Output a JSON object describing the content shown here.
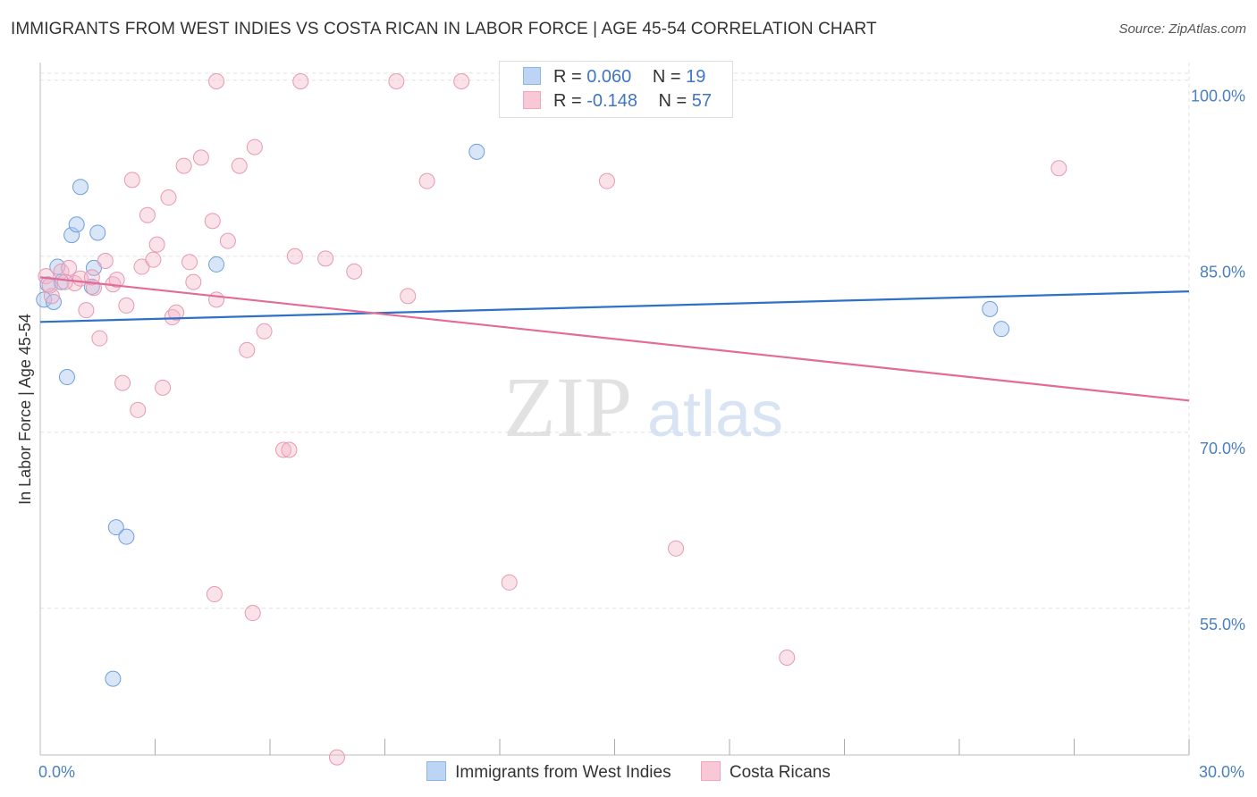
{
  "title": "IMMIGRANTS FROM WEST INDIES VS COSTA RICAN IN LABOR FORCE | AGE 45-54 CORRELATION CHART",
  "source": "Source: ZipAtlas.com",
  "watermark": {
    "zip": "ZIP",
    "atlas": "atlas"
  },
  "colors": {
    "blue": "#a9c8ef",
    "blue_line": "#2f72c5",
    "pink": "#f2b6c8",
    "pink_line": "#e26b98",
    "tick_text": "#4a7fc1",
    "grid": "#e2e2e2"
  },
  "legend": {
    "rows": [
      {
        "r_label": "R =",
        "r_value": "0.060",
        "n_label": "N =",
        "n_value": "19"
      },
      {
        "r_label": "R =",
        "r_value": "-0.148",
        "n_label": "N =",
        "n_value": "57"
      }
    ]
  },
  "chart_data": {
    "type": "scatter",
    "title": "IMMIGRANTS FROM WEST INDIES VS COSTA RICAN IN LABOR FORCE | AGE 45-54 CORRELATION CHART",
    "xlabel": "",
    "ylabel": "In Labor Force | Age 45-54",
    "xlim": [
      0,
      30
    ],
    "ylim": [
      42.5,
      101.5
    ],
    "x_tick_labels": [
      {
        "value": 0,
        "label": "0.0%"
      },
      {
        "value": 30,
        "label": "30.0%"
      }
    ],
    "y_ticks": [
      {
        "value": 100,
        "label": "100.0%"
      },
      {
        "value": 85,
        "label": "85.0%"
      },
      {
        "value": 70,
        "label": "70.0%"
      },
      {
        "value": 55,
        "label": "55.0%"
      }
    ],
    "x_minor_ticks": [
      3,
      6,
      9,
      12,
      15,
      18,
      21,
      24,
      27,
      30
    ],
    "grid": true,
    "legend_position": "top-center",
    "series": [
      {
        "name": "Immigrants from West Indies",
        "color": "#a9c8ef",
        "line_color": "#2f72c5",
        "trend": {
          "x": [
            0,
            30
          ],
          "y": [
            79.4,
            82.0
          ]
        },
        "points": [
          [
            0.1,
            81.3
          ],
          [
            0.35,
            81.1
          ],
          [
            0.45,
            84.1
          ],
          [
            0.55,
            82.8
          ],
          [
            0.7,
            74.7
          ],
          [
            0.82,
            86.8
          ],
          [
            0.95,
            87.7
          ],
          [
            1.05,
            90.9
          ],
          [
            1.35,
            82.4
          ],
          [
            1.4,
            84.0
          ],
          [
            1.5,
            87.0
          ],
          [
            1.98,
            61.9
          ],
          [
            2.25,
            61.1
          ],
          [
            1.9,
            49.0
          ],
          [
            4.6,
            84.3
          ],
          [
            11.4,
            93.9
          ],
          [
            24.8,
            80.5
          ],
          [
            25.1,
            78.8
          ],
          [
            0.2,
            82.6
          ]
        ]
      },
      {
        "name": "Costa Ricans",
        "color": "#f2b6c8",
        "line_color": "#e26b98",
        "trend": {
          "x": [
            0,
            30
          ],
          "y": [
            83.2,
            72.7
          ]
        },
        "points": [
          [
            0.15,
            83.3
          ],
          [
            0.3,
            81.6
          ],
          [
            0.55,
            83.7
          ],
          [
            0.75,
            84.0
          ],
          [
            0.9,
            82.7
          ],
          [
            1.05,
            83.1
          ],
          [
            1.2,
            80.4
          ],
          [
            1.4,
            82.3
          ],
          [
            1.55,
            78.0
          ],
          [
            1.7,
            84.6
          ],
          [
            1.9,
            82.6
          ],
          [
            2.0,
            83.0
          ],
          [
            2.15,
            74.2
          ],
          [
            2.25,
            80.8
          ],
          [
            2.4,
            91.5
          ],
          [
            2.55,
            71.9
          ],
          [
            2.65,
            84.1
          ],
          [
            2.8,
            88.5
          ],
          [
            2.95,
            84.7
          ],
          [
            3.05,
            86.0
          ],
          [
            3.2,
            73.8
          ],
          [
            3.35,
            90.0
          ],
          [
            3.45,
            79.8
          ],
          [
            3.55,
            80.2
          ],
          [
            3.75,
            92.7
          ],
          [
            3.9,
            84.5
          ],
          [
            4.0,
            82.8
          ],
          [
            4.2,
            93.4
          ],
          [
            4.5,
            88.0
          ],
          [
            4.6,
            81.3
          ],
          [
            4.55,
            56.2
          ],
          [
            4.9,
            86.3
          ],
          [
            5.2,
            92.7
          ],
          [
            5.4,
            77.0
          ],
          [
            5.6,
            94.3
          ],
          [
            5.85,
            78.6
          ],
          [
            5.55,
            54.6
          ],
          [
            4.6,
            99.9
          ],
          [
            6.35,
            68.5
          ],
          [
            6.5,
            68.5
          ],
          [
            6.65,
            85.0
          ],
          [
            6.8,
            99.9
          ],
          [
            7.45,
            84.8
          ],
          [
            7.75,
            42.3
          ],
          [
            8.2,
            83.7
          ],
          [
            9.3,
            99.9
          ],
          [
            9.6,
            81.6
          ],
          [
            10.1,
            91.4
          ],
          [
            11.0,
            99.9
          ],
          [
            12.25,
            57.2
          ],
          [
            14.8,
            91.4
          ],
          [
            16.6,
            60.1
          ],
          [
            19.5,
            50.8
          ],
          [
            26.6,
            92.5
          ],
          [
            0.25,
            82.5
          ],
          [
            1.35,
            83.2
          ],
          [
            0.65,
            82.8
          ]
        ]
      }
    ]
  }
}
